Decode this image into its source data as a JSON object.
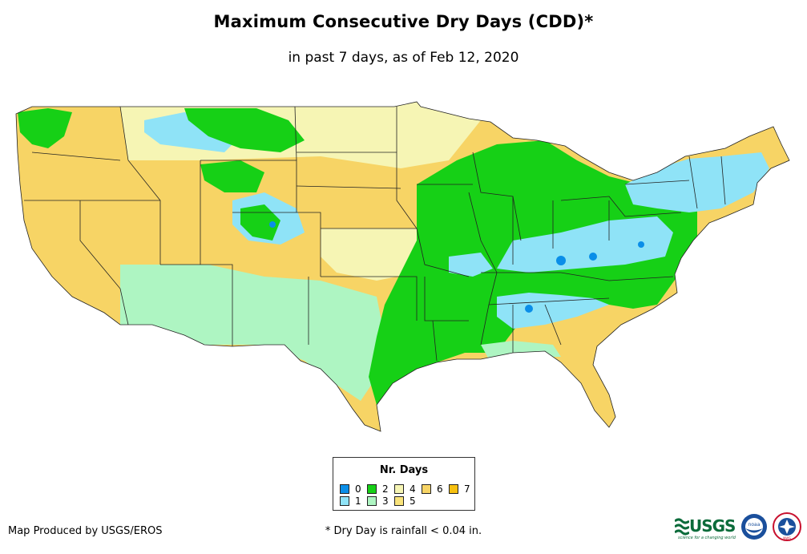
{
  "title": "Maximum Consecutive Dry Days (CDD)*",
  "subtitle": "in past 7 days, as of Feb 12, 2020",
  "legend": {
    "title": "Nr. Days",
    "items": [
      {
        "label": "0",
        "color": "#0a8ee8"
      },
      {
        "label": "1",
        "color": "#8fe3f7"
      },
      {
        "label": "2",
        "color": "#16d016"
      },
      {
        "label": "3",
        "color": "#aef5c2"
      },
      {
        "label": "4",
        "color": "#f6f5b4"
      },
      {
        "label": "5",
        "color": "#f9e37a"
      },
      {
        "label": "6",
        "color": "#f7d465"
      },
      {
        "label": "7",
        "color": "#f6c010"
      }
    ]
  },
  "credit": "Map Produced by USGS/EROS",
  "footnote": "* Dry Day is rainfall < 0.04 in.",
  "logos": {
    "usgs": "USGS",
    "usgs_tagline": "science for a changing world",
    "noaa": "noaa",
    "nws": "NWS"
  }
}
